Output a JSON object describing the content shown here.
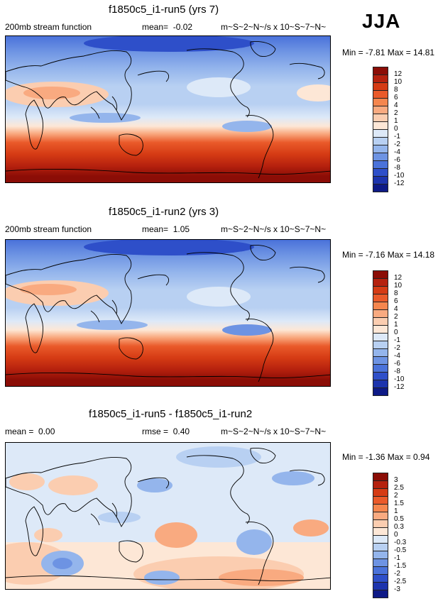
{
  "season": "JJA",
  "panels": [
    {
      "id": "run5",
      "title": "f1850c5_i1-run5 (yrs 7)",
      "variable": "200mb stream function",
      "mean_label": "mean=",
      "mean_value": "-0.02",
      "units": "m~S~2~N~/s x 10~S~7~N~",
      "minmax": "Min = -7.81 Max = 14.81",
      "colorbar": {
        "labels": [
          "12",
          "10",
          "8",
          "6",
          "4",
          "2",
          "1",
          "0",
          "-1",
          "-2",
          "-4",
          "-6",
          "-8",
          "-10",
          "-12"
        ],
        "colors": [
          "#8b0d06",
          "#b5210e",
          "#d53b14",
          "#ea5a2a",
          "#f5864e",
          "#f9aa80",
          "#fbcdb0",
          "#fde7d6",
          "#dde9f8",
          "#b8d0f2",
          "#94b5ec",
          "#6d93e3",
          "#4a72da",
          "#2e4fc9",
          "#1d34ad",
          "#0e1a86"
        ]
      }
    },
    {
      "id": "run2",
      "title": "f1850c5_i1-run2 (yrs 3)",
      "variable": "200mb stream function",
      "mean_label": "mean=",
      "mean_value": "1.05",
      "units": "m~S~2~N~/s x 10~S~7~N~",
      "minmax": "Min = -7.16 Max = 14.18",
      "colorbar": {
        "labels": [
          "12",
          "10",
          "8",
          "6",
          "4",
          "2",
          "1",
          "0",
          "-1",
          "-2",
          "-4",
          "-6",
          "-8",
          "-10",
          "-12"
        ],
        "colors": [
          "#8b0d06",
          "#b5210e",
          "#d53b14",
          "#ea5a2a",
          "#f5864e",
          "#f9aa80",
          "#fbcdb0",
          "#fde7d6",
          "#dde9f8",
          "#b8d0f2",
          "#94b5ec",
          "#6d93e3",
          "#4a72da",
          "#2e4fc9",
          "#1d34ad",
          "#0e1a86"
        ]
      }
    },
    {
      "id": "diff",
      "title": "f1850c5_i1-run5 - f1850c5_i1-run2",
      "mean_label": "mean =",
      "mean_value": "0.00",
      "rmse_label": "rmse =",
      "rmse_value": "0.40",
      "units": "m~S~2~N~/s x 10~S~7~N~",
      "minmax": "Min = -1.36 Max =  0.94",
      "colorbar": {
        "labels": [
          "3",
          "2.5",
          "2",
          "1.5",
          "1",
          "0.5",
          "0.3",
          "0",
          "-0.3",
          "-0.5",
          "-1",
          "-1.5",
          "-2",
          "-2.5",
          "-3"
        ],
        "colors": [
          "#8b0d06",
          "#b5210e",
          "#d53b14",
          "#ea5a2a",
          "#f5864e",
          "#f9aa80",
          "#fbcdb0",
          "#fde7d6",
          "#dde9f8",
          "#b8d0f2",
          "#94b5ec",
          "#6d93e3",
          "#4a72da",
          "#2e4fc9",
          "#1d34ad",
          "#0e1a86"
        ]
      }
    }
  ]
}
